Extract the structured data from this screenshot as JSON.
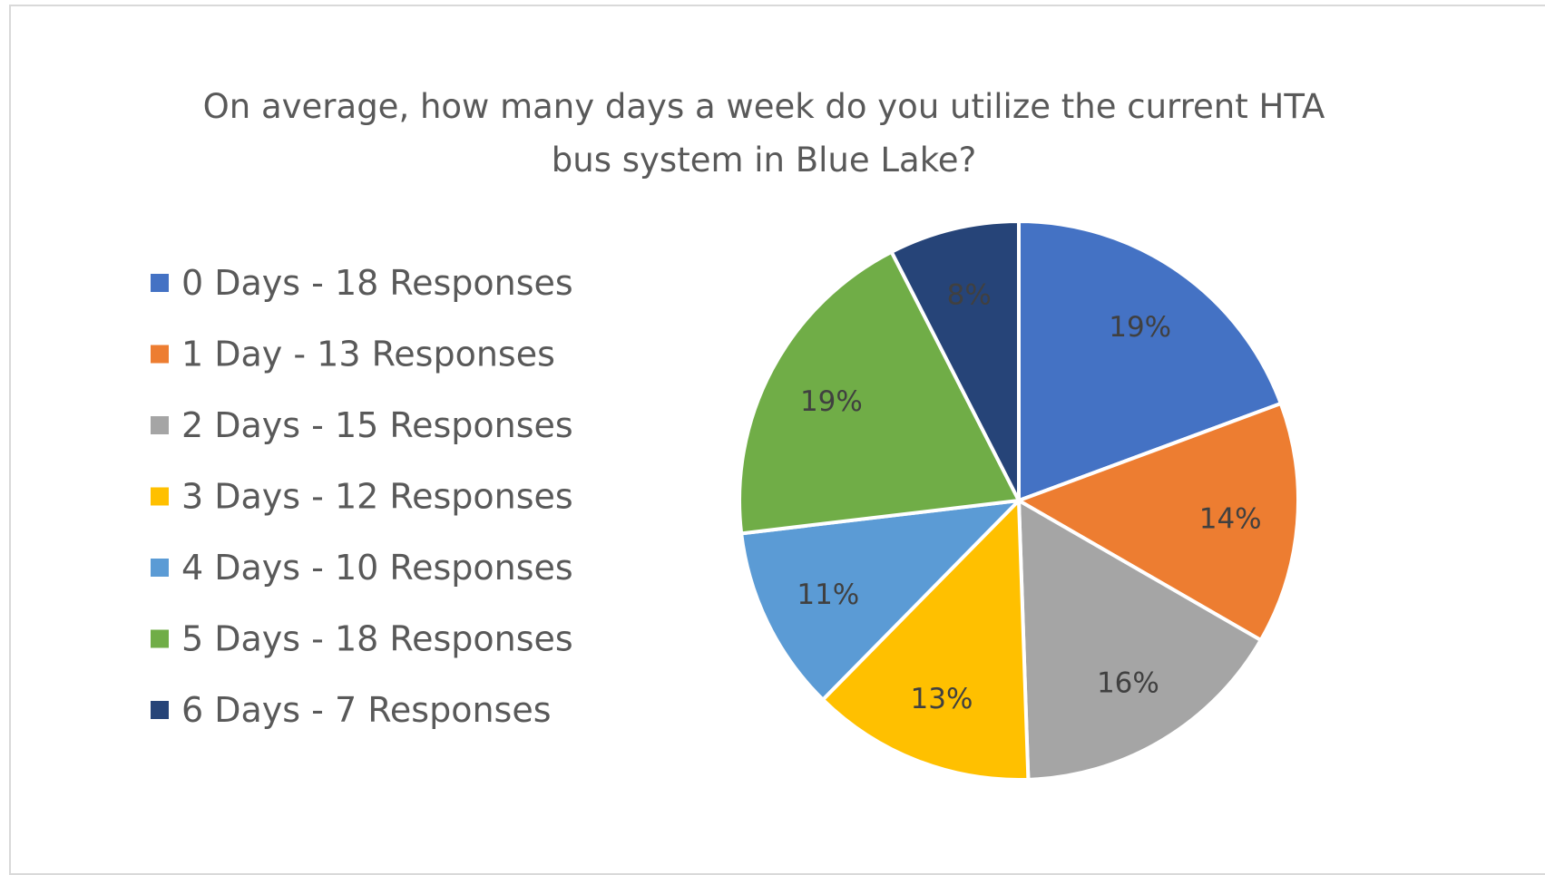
{
  "chart_data": {
    "type": "pie",
    "title": "On average, how many days a week do you utilize the current HTA bus system in Blue Lake?",
    "title_lines": [
      "On average, how many days a week do you utilize the current HTA",
      "bus system in Blue Lake?"
    ],
    "legend_position": "left",
    "slices": [
      {
        "legend": "0 Days - 18 Responses",
        "value": 18,
        "label": "19%",
        "color": "#4472C4"
      },
      {
        "legend": "1 Day - 13 Responses",
        "value": 13,
        "label": "14%",
        "color": "#ED7D31"
      },
      {
        "legend": "2 Days - 15 Responses",
        "value": 15,
        "label": "16%",
        "color": "#A5A5A5"
      },
      {
        "legend": "3 Days - 12 Responses",
        "value": 12,
        "label": "13%",
        "color": "#FFC000"
      },
      {
        "legend": "4 Days - 10 Responses",
        "value": 10,
        "label": "11%",
        "color": "#5B9BD5"
      },
      {
        "legend": "5 Days - 18 Responses",
        "value": 18,
        "label": "19%",
        "color": "#70AD47"
      },
      {
        "legend": "6 Days - 7 Responses",
        "value": 7,
        "label": "8%",
        "color": "#264478"
      }
    ]
  }
}
